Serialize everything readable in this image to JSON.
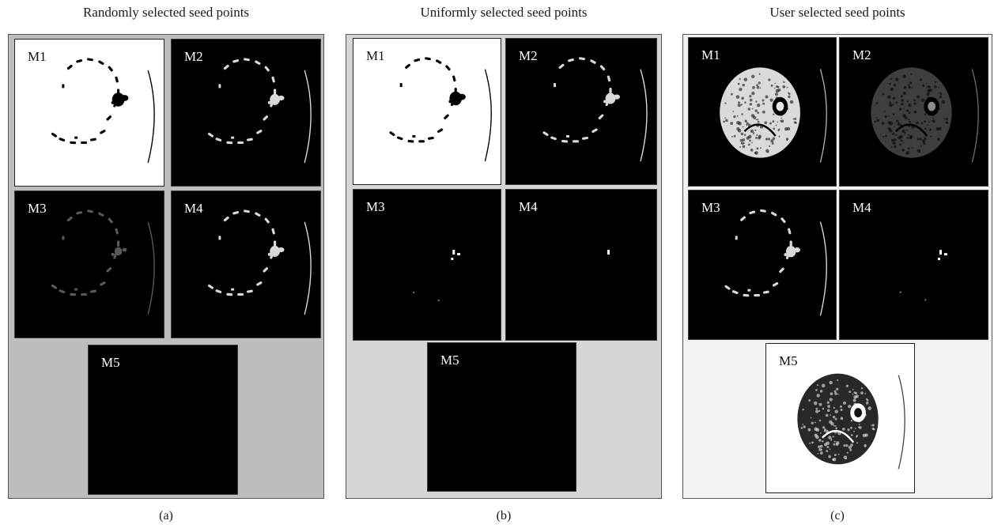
{
  "figure": {
    "panels": [
      {
        "title": "Randomly selected seed points",
        "caption": "(a)",
        "background": "#bdbdbd",
        "tiles": [
          {
            "label": "M1",
            "style": "light",
            "content": "seeds-dark"
          },
          {
            "label": "M2",
            "style": "dark",
            "content": "seeds-light"
          },
          {
            "label": "M3",
            "style": "dark",
            "content": "faint"
          },
          {
            "label": "M4",
            "style": "dark",
            "content": "seeds-light"
          },
          {
            "label": "M5",
            "style": "dark",
            "content": "empty"
          }
        ]
      },
      {
        "title": "Uniformly selected seed points",
        "caption": "(b)",
        "background": "#d6d6d6",
        "tiles": [
          {
            "label": "M1",
            "style": "light",
            "content": "seeds-dark"
          },
          {
            "label": "M2",
            "style": "dark",
            "content": "seeds-light"
          },
          {
            "label": "M3",
            "style": "dark",
            "content": "tiny"
          },
          {
            "label": "M4",
            "style": "dark",
            "content": "dot"
          },
          {
            "label": "M5",
            "style": "dark",
            "content": "empty"
          }
        ]
      },
      {
        "title": "User selected seed points",
        "caption": "(c)",
        "background": "#f1f2f2",
        "tiles": [
          {
            "label": "M1",
            "style": "dark",
            "content": "ct-light"
          },
          {
            "label": "M2",
            "style": "dark",
            "content": "ct-faint"
          },
          {
            "label": "M3",
            "style": "dark",
            "content": "seeds-light"
          },
          {
            "label": "M4",
            "style": "dark",
            "content": "tiny"
          },
          {
            "label": "M5",
            "style": "light",
            "content": "ct-dark"
          }
        ]
      }
    ]
  }
}
